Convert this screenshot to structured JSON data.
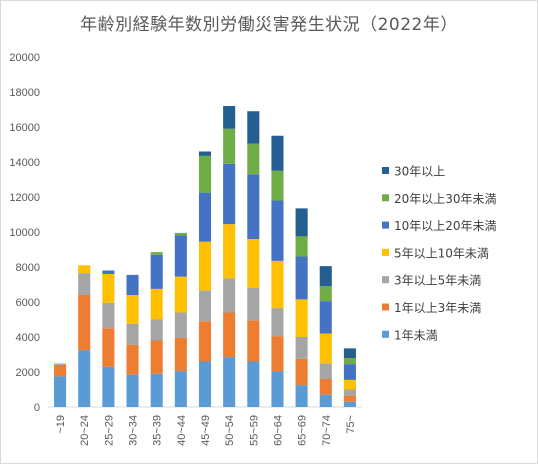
{
  "chart_data": {
    "type": "bar",
    "stacked": true,
    "title": "年齢別経験年数別労働災害発生状況（2022年）",
    "xlabel": "",
    "ylabel": "",
    "ylim": [
      0,
      20000
    ],
    "yticks": [
      0,
      2000,
      4000,
      6000,
      8000,
      10000,
      12000,
      14000,
      16000,
      18000,
      20000
    ],
    "grid": false,
    "legend_position": "right",
    "categories": [
      "~19",
      "20~24",
      "25~29",
      "30~34",
      "35~39",
      "40~44",
      "45~49",
      "50~54",
      "55~59",
      "60~64",
      "65~69",
      "70~74",
      "75~"
    ],
    "series": [
      {
        "name": "1年未満",
        "color": "#5b9bd5",
        "values": [
          1750,
          3250,
          2300,
          1850,
          1900,
          2050,
          2600,
          2850,
          2600,
          2000,
          1250,
          700,
          300
        ]
      },
      {
        "name": "1年以上3年未満",
        "color": "#ed7d31",
        "values": [
          650,
          3150,
          2200,
          1700,
          1900,
          1900,
          2300,
          2550,
          2350,
          2050,
          1500,
          900,
          350
        ]
      },
      {
        "name": "3年以上5年未満",
        "color": "#a5a5a5",
        "values": [
          50,
          1250,
          1450,
          1200,
          1200,
          1450,
          1750,
          1950,
          1850,
          1600,
          1250,
          900,
          350
        ]
      },
      {
        "name": "5年以上10年未満",
        "color": "#ffc000",
        "values": [
          50,
          450,
          1650,
          1650,
          1750,
          2050,
          2800,
          3100,
          2800,
          2700,
          2150,
          1700,
          550
        ]
      },
      {
        "name": "10年以上20年未満",
        "color": "#4472c4",
        "values": [
          0,
          0,
          200,
          1150,
          1950,
          2350,
          2800,
          3450,
          3700,
          3450,
          2450,
          1850,
          900
        ]
      },
      {
        "name": "20年以上30年未満",
        "color": "#70ad47",
        "values": [
          0,
          0,
          0,
          0,
          150,
          150,
          2100,
          2000,
          1750,
          1700,
          1150,
          850,
          350
        ]
      },
      {
        "name": "30年以上",
        "color": "#255e91",
        "values": [
          0,
          0,
          0,
          0,
          0,
          0,
          250,
          1300,
          1850,
          2000,
          1600,
          1150,
          550
        ]
      }
    ]
  }
}
